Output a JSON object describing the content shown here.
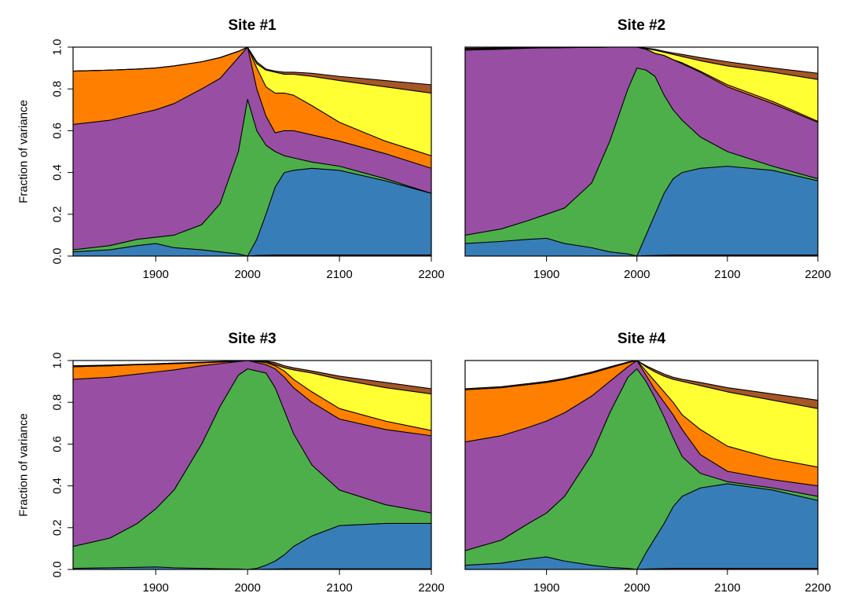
{
  "colors": {
    "blue": "#377EB8",
    "green": "#4DAF4A",
    "purple": "#984EA3",
    "orange": "#FF7F00",
    "yellow": "#FFFF33",
    "brown": "#A65628",
    "red": "#E41A1C"
  },
  "band_order": [
    "red",
    "blue",
    "green",
    "purple",
    "orange",
    "yellow",
    "brown"
  ],
  "chart_data": [
    {
      "type": "area",
      "title": "Site #1",
      "ylabel": "Fraction of variance",
      "xlim": [
        1810,
        2200
      ],
      "ylim": [
        0,
        1
      ],
      "x_ticks": [
        1900,
        2000,
        2100,
        2200
      ],
      "y_ticks": [
        "0.0",
        "0.2",
        "0.4",
        "0.6",
        "0.8",
        "1.0"
      ],
      "x": [
        1810,
        1850,
        1880,
        1900,
        1920,
        1950,
        1970,
        1990,
        2000,
        2010,
        2020,
        2030,
        2040,
        2050,
        2070,
        2100,
        2150,
        2200
      ],
      "cumulative": [
        [
          0,
          0,
          0,
          0,
          0,
          0,
          0,
          0,
          0,
          0.003,
          0.004,
          0.005,
          0.005,
          0.005,
          0.005,
          0.005,
          0.005,
          0.005
        ],
        [
          0.02,
          0.03,
          0.05,
          0.06,
          0.04,
          0.03,
          0.02,
          0.01,
          0,
          0.08,
          0.2,
          0.33,
          0.4,
          0.41,
          0.42,
          0.41,
          0.36,
          0.3
        ],
        [
          0.03,
          0.05,
          0.08,
          0.09,
          0.1,
          0.15,
          0.25,
          0.5,
          0.75,
          0.6,
          0.53,
          0.5,
          0.48,
          0.47,
          0.45,
          0.43,
          0.37,
          0.3
        ],
        [
          0.63,
          0.65,
          0.68,
          0.7,
          0.73,
          0.8,
          0.85,
          0.95,
          1.0,
          0.8,
          0.67,
          0.59,
          0.6,
          0.6,
          0.58,
          0.55,
          0.49,
          0.42
        ],
        [
          0.885,
          0.89,
          0.895,
          0.9,
          0.91,
          0.93,
          0.95,
          0.98,
          1.0,
          0.9,
          0.81,
          0.78,
          0.78,
          0.77,
          0.72,
          0.64,
          0.55,
          0.48
        ],
        [
          0.885,
          0.89,
          0.895,
          0.9,
          0.91,
          0.93,
          0.95,
          0.98,
          1.0,
          0.92,
          0.89,
          0.88,
          0.87,
          0.87,
          0.86,
          0.84,
          0.81,
          0.78
        ],
        [
          0.885,
          0.89,
          0.895,
          0.9,
          0.91,
          0.93,
          0.95,
          0.98,
          1.0,
          0.93,
          0.895,
          0.885,
          0.88,
          0.88,
          0.875,
          0.86,
          0.84,
          0.82
        ]
      ]
    },
    {
      "type": "area",
      "title": "Site #2",
      "ylabel": "",
      "xlim": [
        1810,
        2200
      ],
      "ylim": [
        0,
        1
      ],
      "x_ticks": [
        1900,
        2000,
        2100,
        2200
      ],
      "y_ticks": [],
      "x": [
        1810,
        1850,
        1880,
        1900,
        1920,
        1950,
        1970,
        1990,
        2000,
        2010,
        2020,
        2030,
        2040,
        2050,
        2070,
        2100,
        2150,
        2200
      ],
      "cumulative": [
        [
          0,
          0,
          0,
          0,
          0,
          0,
          0,
          0,
          0,
          0.002,
          0.003,
          0.004,
          0.005,
          0.005,
          0.005,
          0.005,
          0.005,
          0.005
        ],
        [
          0.06,
          0.07,
          0.08,
          0.085,
          0.06,
          0.04,
          0.02,
          0.01,
          0,
          0.1,
          0.2,
          0.3,
          0.37,
          0.4,
          0.42,
          0.43,
          0.41,
          0.36
        ],
        [
          0.1,
          0.13,
          0.17,
          0.2,
          0.23,
          0.35,
          0.55,
          0.8,
          0.9,
          0.89,
          0.86,
          0.77,
          0.7,
          0.65,
          0.57,
          0.5,
          0.43,
          0.37
        ],
        [
          0.985,
          0.99,
          0.995,
          0.997,
          0.998,
          0.999,
          1.0,
          1.0,
          1.0,
          0.99,
          0.97,
          0.96,
          0.94,
          0.92,
          0.88,
          0.81,
          0.73,
          0.64
        ],
        [
          0.99,
          0.993,
          0.996,
          0.997,
          0.998,
          0.999,
          1.0,
          1.0,
          1.0,
          0.99,
          0.97,
          0.96,
          0.94,
          0.925,
          0.885,
          0.82,
          0.74,
          0.645
        ],
        [
          0.99,
          0.993,
          0.996,
          0.997,
          0.998,
          0.999,
          1.0,
          1.0,
          1.0,
          0.993,
          0.985,
          0.975,
          0.965,
          0.955,
          0.935,
          0.91,
          0.88,
          0.845
        ],
        [
          0.995,
          0.996,
          0.997,
          0.998,
          0.999,
          1.0,
          1.0,
          1.0,
          1.0,
          0.995,
          0.99,
          0.98,
          0.972,
          0.965,
          0.95,
          0.93,
          0.9,
          0.875
        ]
      ]
    },
    {
      "type": "area",
      "title": "Site #3",
      "ylabel": "Fraction of variance",
      "xlim": [
        1810,
        2200
      ],
      "ylim": [
        0,
        1
      ],
      "x_ticks": [
        1900,
        2000,
        2100,
        2200
      ],
      "y_ticks": [
        "0.0",
        "0.2",
        "0.4",
        "0.6",
        "0.8",
        "1.0"
      ],
      "x": [
        1810,
        1850,
        1880,
        1900,
        1920,
        1950,
        1970,
        1990,
        2000,
        2010,
        2020,
        2030,
        2040,
        2050,
        2070,
        2100,
        2150,
        2200
      ],
      "cumulative": [
        [
          0,
          0,
          0,
          0,
          0,
          0,
          0,
          0,
          0,
          0,
          0.001,
          0.002,
          0.003,
          0.003,
          0.003,
          0.003,
          0.003,
          0.003
        ],
        [
          0.005,
          0.008,
          0.01,
          0.012,
          0.008,
          0.005,
          0.003,
          0.002,
          0,
          0.005,
          0.02,
          0.04,
          0.07,
          0.11,
          0.16,
          0.21,
          0.22,
          0.22
        ],
        [
          0.11,
          0.15,
          0.22,
          0.29,
          0.38,
          0.6,
          0.78,
          0.93,
          0.96,
          0.95,
          0.94,
          0.87,
          0.76,
          0.65,
          0.5,
          0.38,
          0.31,
          0.27
        ],
        [
          0.91,
          0.92,
          0.935,
          0.945,
          0.955,
          0.975,
          0.985,
          0.995,
          1.0,
          0.99,
          0.98,
          0.96,
          0.92,
          0.87,
          0.8,
          0.72,
          0.67,
          0.64
        ],
        [
          0.97,
          0.975,
          0.98,
          0.982,
          0.985,
          0.99,
          0.993,
          0.997,
          1.0,
          0.995,
          0.99,
          0.975,
          0.95,
          0.91,
          0.85,
          0.77,
          0.71,
          0.665
        ],
        [
          0.97,
          0.975,
          0.98,
          0.982,
          0.985,
          0.99,
          0.993,
          0.997,
          1.0,
          0.997,
          0.995,
          0.98,
          0.965,
          0.955,
          0.94,
          0.91,
          0.87,
          0.84
        ],
        [
          0.975,
          0.978,
          0.982,
          0.985,
          0.988,
          0.992,
          0.995,
          0.998,
          1.0,
          0.998,
          0.997,
          0.99,
          0.975,
          0.965,
          0.95,
          0.925,
          0.895,
          0.865
        ]
      ]
    },
    {
      "type": "area",
      "title": "Site #4",
      "ylabel": "",
      "xlim": [
        1810,
        2200
      ],
      "ylim": [
        0,
        1
      ],
      "x_ticks": [
        1900,
        2000,
        2100,
        2200
      ],
      "y_ticks": [],
      "x": [
        1810,
        1850,
        1880,
        1900,
        1920,
        1950,
        1970,
        1990,
        2000,
        2010,
        2020,
        2030,
        2040,
        2050,
        2070,
        2100,
        2150,
        2200
      ],
      "cumulative": [
        [
          0,
          0,
          0,
          0,
          0,
          0,
          0,
          0,
          0,
          0.002,
          0.003,
          0.004,
          0.005,
          0.005,
          0.005,
          0.005,
          0.005,
          0.005
        ],
        [
          0.02,
          0.03,
          0.05,
          0.06,
          0.04,
          0.02,
          0.01,
          0.005,
          0,
          0.08,
          0.15,
          0.22,
          0.3,
          0.35,
          0.39,
          0.41,
          0.38,
          0.33
        ],
        [
          0.09,
          0.14,
          0.22,
          0.27,
          0.35,
          0.55,
          0.75,
          0.92,
          0.96,
          0.9,
          0.82,
          0.73,
          0.63,
          0.54,
          0.46,
          0.42,
          0.39,
          0.35
        ],
        [
          0.61,
          0.64,
          0.68,
          0.71,
          0.75,
          0.83,
          0.9,
          0.97,
          1.0,
          0.93,
          0.86,
          0.8,
          0.74,
          0.67,
          0.55,
          0.47,
          0.43,
          0.4
        ],
        [
          0.86,
          0.87,
          0.885,
          0.895,
          0.91,
          0.94,
          0.965,
          0.99,
          1.0,
          0.95,
          0.9,
          0.85,
          0.8,
          0.74,
          0.67,
          0.59,
          0.53,
          0.49
        ],
        [
          0.86,
          0.87,
          0.885,
          0.895,
          0.91,
          0.94,
          0.965,
          0.99,
          1.0,
          0.97,
          0.945,
          0.925,
          0.91,
          0.9,
          0.88,
          0.85,
          0.81,
          0.77
        ],
        [
          0.865,
          0.875,
          0.89,
          0.9,
          0.915,
          0.945,
          0.97,
          0.993,
          1.0,
          0.975,
          0.955,
          0.935,
          0.92,
          0.91,
          0.895,
          0.87,
          0.84,
          0.81
        ]
      ]
    }
  ]
}
